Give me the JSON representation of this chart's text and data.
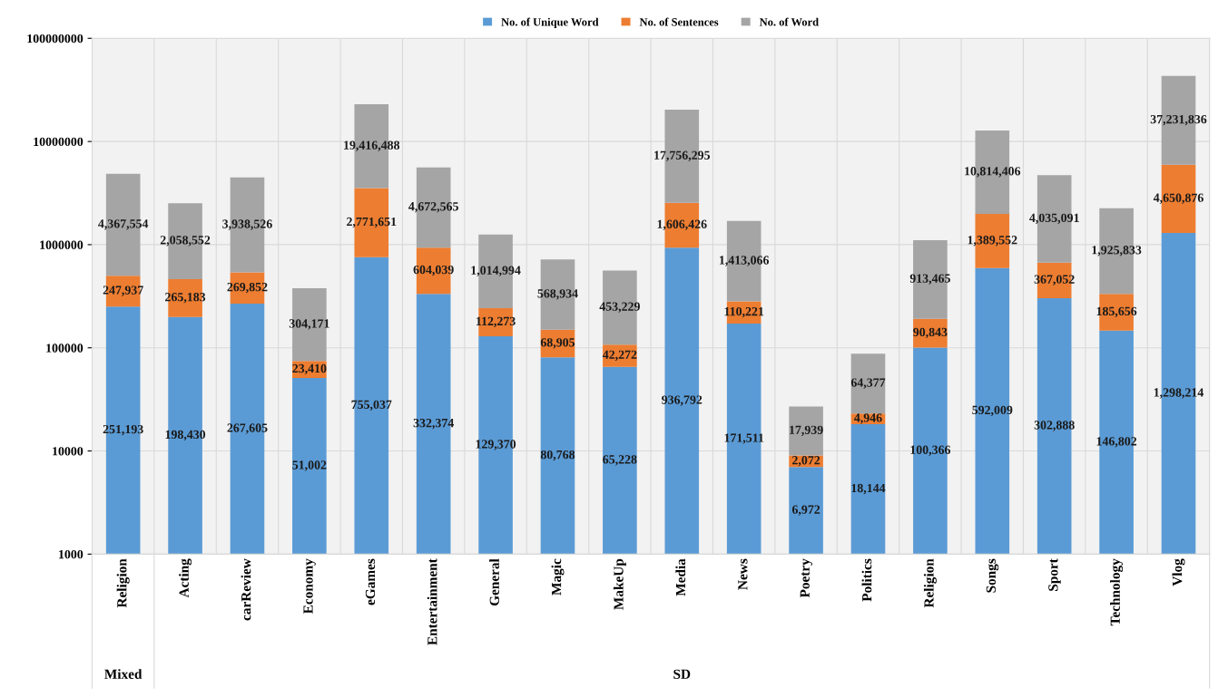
{
  "chart_data": {
    "type": "bar",
    "stacked": true,
    "log": true,
    "categories": [
      "Religion",
      "Acting",
      "carReview",
      "Economy",
      "eGames",
      "Entertainment",
      "General",
      "Magic",
      "MakeUp",
      "Media",
      "News",
      "Poetry",
      "Politics",
      "Religion",
      "Songs",
      "Sport",
      "Technology",
      "Vlog"
    ],
    "series": [
      {
        "name": "No. of Unique Word",
        "color": "#5b9bd5",
        "values": [
          251193,
          198430,
          267605,
          51002,
          755037,
          332374,
          129370,
          80768,
          65228,
          936792,
          171511,
          6972,
          18144,
          100366,
          592009,
          302888,
          146802,
          1298214
        ],
        "value_labels": [
          "251,193",
          "198,430",
          "267,605",
          "51,002",
          "755,037",
          "332,374",
          "129,370",
          "80,768",
          "65,228",
          "936,792",
          "171,511",
          "6,972",
          "18,144",
          "100,366",
          "592,009",
          "302,888",
          "146,802",
          "1,298,214"
        ]
      },
      {
        "name": "No. of Sentences",
        "color": "#ed7d31",
        "values": [
          247937,
          265183,
          269852,
          23410,
          2771651,
          604039,
          112273,
          68905,
          42272,
          1606426,
          110221,
          2072,
          4946,
          90843,
          1389552,
          367052,
          185656,
          4650876
        ],
        "value_labels": [
          "247,937",
          "265,183",
          "269,852",
          "23,410",
          "2,771,651",
          "604,039",
          "112,273",
          "68,905",
          "42,272",
          "1,606,426",
          "110,221",
          "2,072",
          "4,946",
          "90,843",
          "1,389,552",
          "367,052",
          "185,656",
          "4,650,876"
        ]
      },
      {
        "name": "No. of Word",
        "color": "#a5a5a5",
        "values": [
          4367554,
          2058552,
          3938526,
          304171,
          19416488,
          4672565,
          1014994,
          568934,
          453229,
          17756295,
          1413066,
          17939,
          64377,
          913465,
          10814406,
          4035091,
          1925833,
          37231836
        ],
        "value_labels": [
          "4,367,554",
          "2,058,552",
          "3,938,526",
          "304,171",
          "19,416,488",
          "4,672,565",
          "1,014,994",
          "568,934",
          "453,229",
          "17,756,295",
          "1,413,066",
          "17,939",
          "64,377",
          "913,465",
          "10,814,406",
          "4,035,091",
          "1,925,833",
          "37,231,836"
        ]
      }
    ],
    "ylim": [
      1000,
      100000000
    ],
    "yticks": [
      1000,
      10000,
      100000,
      1000000,
      10000000,
      100000000
    ],
    "grid": true,
    "legend": "top",
    "annotations": [
      "Mixed",
      "SD"
    ]
  }
}
